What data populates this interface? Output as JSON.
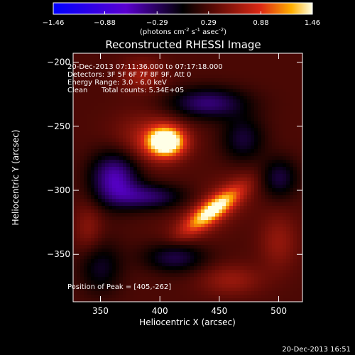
{
  "chart_data": {
    "type": "heatmap",
    "title": "Reconstructed RHESSI Image",
    "xlabel": "Heliocentric X (arcsec)",
    "ylabel": "Heliocentric Y (arcsec)",
    "xlim": [
      327,
      520
    ],
    "ylim": [
      -387,
      -193
    ],
    "x_ticks": [
      350,
      400,
      450,
      500
    ],
    "y_ticks": [
      -200,
      -250,
      -300,
      -350
    ],
    "colorbar": {
      "min": -1.46,
      "max": 1.46,
      "tick_values": [
        -1.46,
        -0.88,
        -0.29,
        0.29,
        0.88,
        1.46
      ],
      "tick_labels": [
        "-1.46",
        "-0.88",
        "-0.29",
        "0.29",
        "0.88",
        "1.46"
      ],
      "units_prefix": "(photons cm",
      "units_sup1": "-2",
      "units_mid1": " s",
      "units_sup2": "-1",
      "units_mid2": " asec",
      "units_sup3": "-2",
      "units_suffix": ")"
    },
    "colors": {
      "negative_end": "#0000ff",
      "negative_mid": "#5a00d0",
      "zero": "#000000",
      "positive_low": "#5a0a05",
      "positive_mid": "#dc2814",
      "positive_high": "#ffaf00",
      "positive_top": "#ffffe6"
    },
    "sources": [
      {
        "label": "peak source",
        "x": 405,
        "y": -262,
        "intensity": 1.46
      },
      {
        "label": "southern arc source",
        "x": 445,
        "y": -315,
        "intensity": 1.0
      }
    ],
    "annotations": {
      "time_range": "20-Dec-2013 07:11:36.000 to 07:17:18.000",
      "detectors": "Detectors: 3F 5F 6F 7F 8F 9F, Att 0",
      "energy_range": "Energy Range: 3.0 - 6.0 keV",
      "clean_label": "Clean",
      "total_counts": "Total counts: 5.34E+05",
      "peak_position": "Position of Peak = [405,-262]"
    }
  },
  "footer": {
    "timestamp": "20-Dec-2013 16:51"
  }
}
